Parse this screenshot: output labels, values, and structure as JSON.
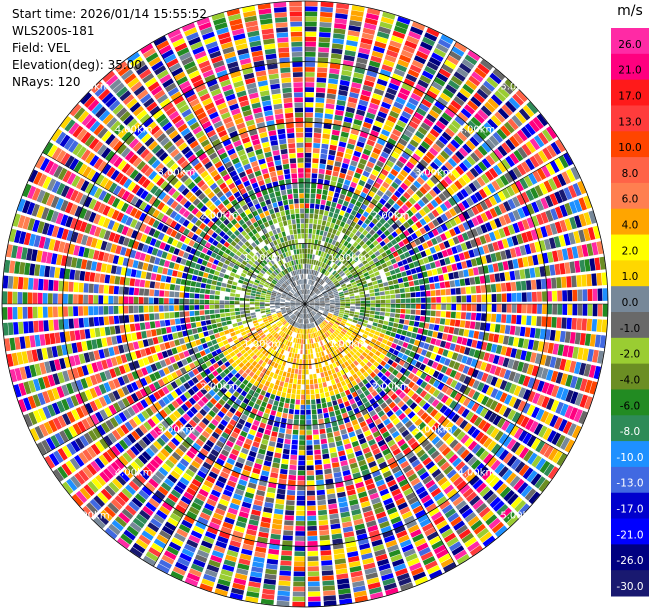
{
  "header": {
    "start_time": "Start time: 2026/01/14 15:55:52",
    "instrument": "WLS200s-181",
    "field": "Field: VEL",
    "elevation": "Elevation(deg): 35.00",
    "nrays": "NRays: 120"
  },
  "colorbar": {
    "unit": "m/s",
    "ticks": [
      "26.0",
      "21.0",
      "17.0",
      "13.0",
      "10.0",
      "8.0",
      "6.0",
      "4.0",
      "2.0",
      "1.0",
      "0.0",
      "-1.0",
      "-2.0",
      "-4.0",
      "-6.0",
      "-8.0",
      "-10.0",
      "-13.0",
      "-17.0",
      "-21.0",
      "-26.0",
      "-30.0"
    ],
    "colors": [
      "#ff2aa5",
      "#ff007f",
      "#ff1a1a",
      "#ff3c3c",
      "#ff4500",
      "#ff6347",
      "#ff7f50",
      "#ffa500",
      "#ffff00",
      "#ffd700",
      "#778899",
      "#696969",
      "#9acd32",
      "#6b8e23",
      "#228b22",
      "#2e8b57",
      "#1e90ff",
      "#4169e1",
      "#0000cd",
      "#0000ff",
      "#000080",
      "#191970"
    ]
  },
  "chart_data": {
    "type": "heatmap",
    "subtype": "polar-ppi",
    "field": "VEL",
    "units": "m/s",
    "n_rays": 120,
    "elevation_deg": 35.0,
    "range_rings_km": [
      1.0,
      2.0,
      3.0,
      4.0,
      5.0
    ],
    "range_ring_labels": [
      "1.00km",
      "2.00km",
      "3.00km",
      "4.00km",
      "5.00km"
    ],
    "color_scale_min": -30.0,
    "color_scale_max": 30.0,
    "max_range_km": 5.0
  }
}
